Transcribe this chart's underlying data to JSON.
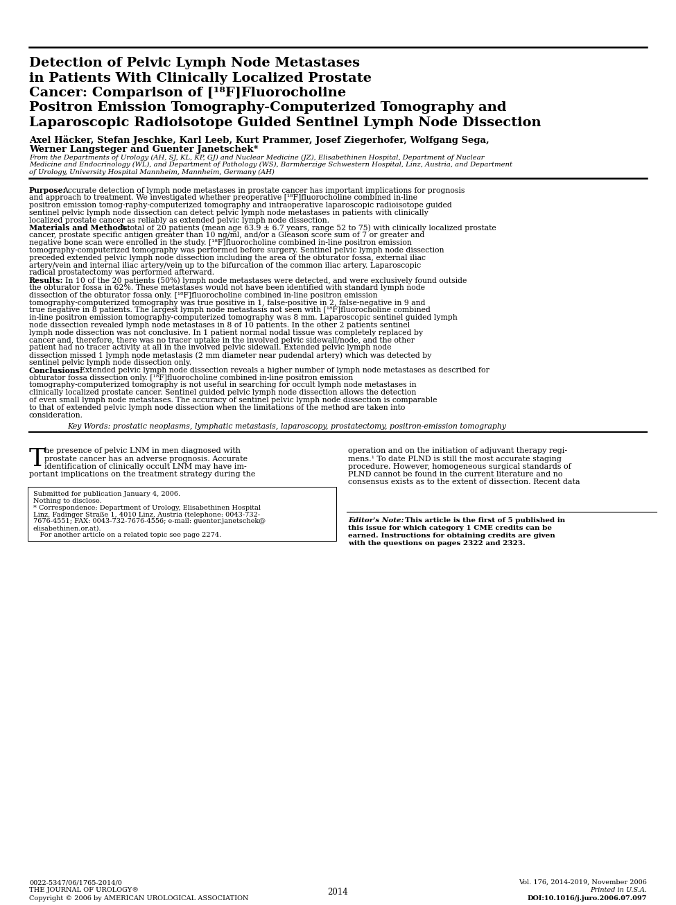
{
  "bg_color": "#ffffff",
  "title_lines": [
    "Detection of Pelvic Lymph Node Metastases",
    "in Patients With Clinically Localized Prostate",
    "Cancer: Comparison of [¹⁸F]Fluorocholine",
    "Positron Emission Tomography-Computerized Tomography and",
    "Laparoscopic Radioisotope Guided Sentinel Lymph Node Dissection"
  ],
  "authors_line1": "Axel Häcker, Stefan Jeschke, Karl Leeb, Kurt Prammer, Josef Ziegerhofer, Wolfgang Sega,",
  "authors_line2": "Werner Langsteger and Guenter Janetschek*",
  "affil_line1": "From the Departments of Urology (AH, SJ, KL, KP, GJ) and Nuclear Medicine (JZ), Elisabethinen Hospital, Department of Nuclear",
  "affil_line2": "Medicine and Endocrinology (WL), and Department of Pathology (WS), Barmherzige Schwestern Hospital, Linz, Austria, and Department",
  "affil_line3": "of Urology, University Hospital Mannheim, Mannheim, Germany (AH)",
  "abstract_purpose": "Accurate detection of lymph node metastases in prostate cancer has important implications for prognosis and approach to treatment. We investigated whether preoperative [¹⁸F]fluorocholine combined in-line positron emission tomog-raphy-computerized tomography and intraoperative laparoscopic radioisotope guided sentinel pelvic lymph node dissection can detect pelvic lymph node metastases in patients with clinically localized prostate cancer as reliably as extended pelvic lymph node dissection.",
  "abstract_methods": "A total of 20 patients (mean age 63.9 ± 6.7 years, range 52 to 75) with clinically localized prostate cancer, prostate specific antigen greater than 10 ng/ml, and/or a Gleason score sum of 7 or greater and negative bone scan were enrolled in the study. [¹⁸F]fluorocholine combined in-line positron emission tomography-computerized tomography was performed before surgery. Sentinel pelvic lymph node dissection preceded extended pelvic lymph node dissection including the area of the obturator fossa, external iliac artery/vein and internal iliac artery/vein up to the bifurcation of the common iliac artery. Laparoscopic radical prostatectomy was performed afterward.",
  "abstract_results": "In 10 of the 20 patients (50%) lymph node metastases were detected, and were exclusively found outside the obturator fossa in 62%. These metastases would not have been identified with standard lymph node dissection of the obturator fossa only. [¹⁸F]fluorocholine combined in-line positron emission tomography-computerized tomography was true positive in 1, false-positive in 2, false-negative in 9 and true negative in 8 patients. The largest lymph node metastasis not seen with [¹⁸F]fluorocholine combined in-line positron emission tomography-computerized tomography was 8 mm. Laparoscopic sentinel guided lymph node dissection revealed lymph node metastases in 8 of 10 patients. In the other 2 patients sentinel lymph node dissection was not conclusive. In 1 patient normal nodal tissue was completely replaced by cancer and, therefore, there was no tracer uptake in the involved pelvic sidewall/node, and the other patient had no tracer activity at all in the involved pelvic sidewall. Extended pelvic lymph node dissection missed 1 lymph node metastasis (2 mm diameter near pudendal artery) which was detected by sentinel pelvic lymph node dissection only.",
  "abstract_conclusions": "Extended pelvic lymph node dissection reveals a higher number of lymph node metastases as described for obturator fossa dissection only. [¹⁸F]fluorocholine combined in-line positron emission tomography-computerized tomography is not useful in searching for occult lymph node metastases in clinically localized prostate cancer. Sentinel guided pelvic lymph node dissection allows the detection of even small lymph node metastases. The accuracy of sentinel pelvic lymph node dissection is comparable to that of extended pelvic lymph node dissection when the limitations of the method are taken into consideration.",
  "keywords": "Key Words: prostatic neoplasms, lymphatic metastasis, laparoscopy, prostatectomy, positron-emission tomography",
  "body_dropcap": "T",
  "body_col1_lines": [
    "he presence of pelvic LNM in men diagnosed with",
    "prostate cancer has an adverse prognosis. Accurate",
    "identification of clinically occult LNM may have im-",
    "portant implications on the treatment strategy during the"
  ],
  "body_col2_lines": [
    "operation and on the initiation of adjuvant therapy regi-",
    "mens.¹ To date PLND is still the most accurate staging",
    "procedure. However, homogeneous surgical standards of",
    "PLND cannot be found in the current literature and no",
    "consensus exists as to the extent of dissection. Recent data"
  ],
  "fn1": "Submitted for publication January 4, 2006.",
  "fn2": "Nothing to disclose.",
  "fn3a": "* Correspondence: Department of Urology, Elisabethinen Hospital",
  "fn3b": "Linz, Fadinger Straße 1, 4010 Linz, Austria (telephone: 0043-732-",
  "fn3c": "7676-4551; FAX: 0043-732-7676-4556; e-mail: guenter.janetschek@",
  "fn3d": "elisabethinen.or.at).",
  "fn4": "   For another article on a related topic see page 2274.",
  "en_line1": "This article is the first of 5 published in",
  "en_line2": "this issue for which category 1 CME credits can be",
  "en_line3": "earned. Instructions for obtaining credits are given",
  "en_line4": "with the questions on pages 2322 and 2323.",
  "footer_left_1": "0022-5347/06/1765-2014/0",
  "footer_left_2": "THE JOURNAL OF UROLOGY®",
  "footer_left_3": "Copyright © 2006 by AMERICAN UROLOGICAL ASSOCIATION",
  "footer_center": "2014",
  "footer_right_1": "Vol. 176, 2014-2019, November 2006",
  "footer_right_2": "Printed in U.S.A.",
  "footer_right_3": "DOI:10.1016/j.juro.2006.07.097"
}
